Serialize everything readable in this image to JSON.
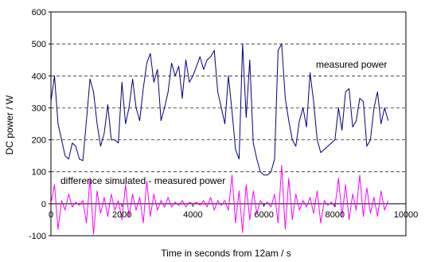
{
  "chart_data": {
    "type": "line",
    "xlabel": "Time in seconds from 12am / s",
    "ylabel": "DC power / W",
    "xlim": [
      0,
      10000
    ],
    "ylim": [
      -100,
      600
    ],
    "x_ticks": [
      0,
      2000,
      4000,
      6000,
      8000,
      10000
    ],
    "y_ticks": [
      -100,
      0,
      100,
      200,
      300,
      400,
      500,
      600
    ],
    "grid": "horizontal dashed",
    "annotations": [
      "measured power",
      "difference simulated - measured power"
    ],
    "series": [
      {
        "color": "#000080",
        "x": [
          0,
          100,
          200,
          300,
          400,
          500,
          600,
          700,
          800,
          900,
          1000,
          1100,
          1200,
          1300,
          1400,
          1500,
          1600,
          1700,
          1800,
          1900,
          2000,
          2100,
          2200,
          2300,
          2400,
          2500,
          2600,
          2700,
          2800,
          2900,
          3000,
          3100,
          3200,
          3300,
          3400,
          3500,
          3600,
          3700,
          3800,
          3900,
          4000,
          4100,
          4200,
          4300,
          4400,
          4500,
          4600,
          4700,
          4800,
          4900,
          5000,
          5100,
          5200,
          5300,
          5400,
          5500,
          5600,
          5700,
          5800,
          5900,
          6000,
          6100,
          6200,
          6300,
          6400,
          6500,
          6600,
          6700,
          6800,
          6900,
          7000,
          7100,
          7200,
          7300,
          7400,
          7500,
          7600,
          7700,
          7800,
          7900,
          8000,
          8100,
          8200,
          8300,
          8400,
          8500,
          8600,
          8700,
          8800,
          8900,
          9000,
          9100,
          9200,
          9300,
          9400,
          9500
        ],
        "y": [
          320,
          400,
          250,
          200,
          150,
          140,
          190,
          180,
          140,
          135,
          260,
          390,
          350,
          250,
          180,
          220,
          310,
          200,
          200,
          190,
          380,
          250,
          300,
          390,
          300,
          260,
          360,
          440,
          470,
          380,
          420,
          260,
          300,
          350,
          440,
          400,
          430,
          330,
          450,
          380,
          400,
          430,
          460,
          420,
          450,
          460,
          480,
          350,
          300,
          250,
          400,
          290,
          170,
          140,
          500,
          270,
          450,
          190,
          140,
          100,
          90,
          90,
          100,
          140,
          480,
          500,
          330,
          260,
          200,
          180,
          260,
          300,
          240,
          410,
          320,
          200,
          160,
          170,
          180,
          190,
          200,
          300,
          230,
          350,
          360,
          240,
          260,
          330,
          320,
          180,
          200,
          300,
          350,
          250,
          300,
          260
        ]
      },
      {
        "color": "#ff00ff",
        "x": [
          0,
          100,
          200,
          300,
          400,
          500,
          600,
          700,
          800,
          900,
          1000,
          1100,
          1200,
          1300,
          1400,
          1500,
          1600,
          1700,
          1800,
          1900,
          2000,
          2100,
          2200,
          2300,
          2400,
          2500,
          2600,
          2700,
          2800,
          2900,
          3000,
          3100,
          3200,
          3300,
          3400,
          3500,
          3600,
          3700,
          3800,
          3900,
          4000,
          4100,
          4200,
          4300,
          4400,
          4500,
          4600,
          4700,
          4800,
          4900,
          5000,
          5100,
          5200,
          5300,
          5400,
          5500,
          5600,
          5700,
          5800,
          5900,
          6000,
          6100,
          6200,
          6300,
          6400,
          6500,
          6600,
          6700,
          6800,
          6900,
          7000,
          7100,
          7200,
          7300,
          7400,
          7500,
          7600,
          7700,
          7800,
          7900,
          8000,
          8100,
          8200,
          8300,
          8400,
          8500,
          8600,
          8700,
          8800,
          8900,
          9000,
          9100,
          9200,
          9300,
          9400,
          9500
        ],
        "y": [
          0,
          60,
          -80,
          10,
          -20,
          30,
          -10,
          5,
          -5,
          10,
          -60,
          80,
          -95,
          40,
          -30,
          20,
          -40,
          30,
          -20,
          10,
          -50,
          60,
          -40,
          30,
          -20,
          20,
          -60,
          70,
          -40,
          30,
          -20,
          10,
          -10,
          20,
          -10,
          5,
          -5,
          10,
          -10,
          5,
          0,
          5,
          -5,
          10,
          -10,
          20,
          -20,
          10,
          -5,
          10,
          -20,
          90,
          -60,
          40,
          -90,
          60,
          -50,
          40,
          -30,
          10,
          -5,
          5,
          -10,
          30,
          -60,
          120,
          -80,
          80,
          -50,
          30,
          -20,
          10,
          -10,
          20,
          -30,
          40,
          -60,
          10,
          -5,
          5,
          -10,
          80,
          -40,
          60,
          -50,
          30,
          -20,
          90,
          -40,
          50,
          -30,
          20,
          -40,
          40,
          -20,
          10
        ]
      }
    ]
  }
}
